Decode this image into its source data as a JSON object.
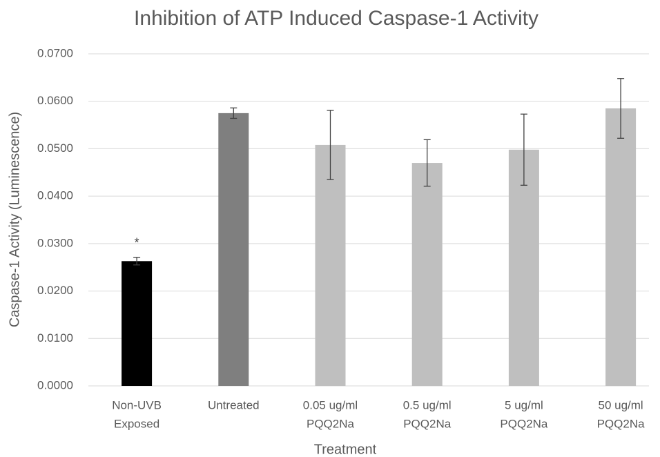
{
  "chart_data": {
    "type": "bar",
    "title": "Inhibition of ATP Induced Caspase-1 Activity",
    "x_label": "Treatment",
    "y_label": "Caspase-1 Activity (Luminescence)",
    "categories": [
      [
        "Non-UVB",
        "Exposed"
      ],
      [
        "Untreated"
      ],
      [
        "0.05 ug/ml",
        "PQQ2Na"
      ],
      [
        "0.5 ug/ml",
        "PQQ2Na"
      ],
      [
        "5 ug/ml",
        "PQQ2Na"
      ],
      [
        "50 ug/ml",
        "PQQ2Na"
      ]
    ],
    "values": [
      0.0263,
      0.0575,
      0.0508,
      0.047,
      0.0498,
      0.0585
    ],
    "errors": [
      0.0008,
      0.0011,
      0.0073,
      0.0049,
      0.0075,
      0.0063
    ],
    "colors": [
      "#000000",
      "#7f7f7f",
      "#bfbfbf",
      "#bfbfbf",
      "#bfbfbf",
      "#bfbfbf"
    ],
    "annotations": [
      {
        "category": 0,
        "text": "*"
      }
    ],
    "ylim": [
      0,
      0.07
    ],
    "yticks": [
      {
        "value": 0,
        "label": "0.0000"
      },
      {
        "value": 0.01,
        "label": "0.0100"
      },
      {
        "value": 0.02,
        "label": "0.0200"
      },
      {
        "value": 0.03,
        "label": "0.0300"
      },
      {
        "value": 0.04,
        "label": "0.0400"
      },
      {
        "value": 0.05,
        "label": "0.0500"
      },
      {
        "value": 0.06,
        "label": "0.0600"
      },
      {
        "value": 0.07,
        "label": "0.0700"
      }
    ],
    "grid": true
  }
}
